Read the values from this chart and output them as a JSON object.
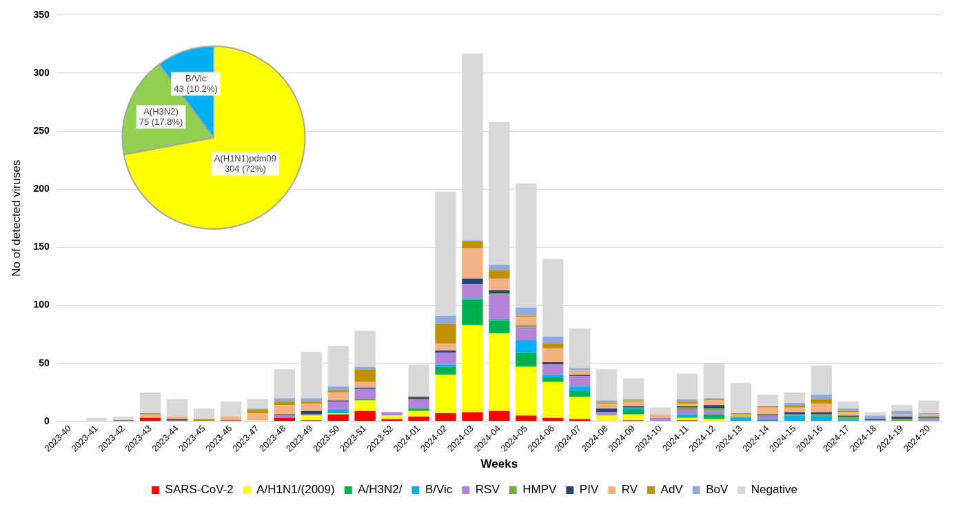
{
  "chart_data": [
    {
      "type": "bar",
      "stacked": true,
      "xlabel": "Weeks",
      "ylabel": "No of detected viruses",
      "categories": [
        "2023-40",
        "2023-41",
        "2023-42",
        "2023-43",
        "2023-44",
        "2023-45",
        "2023-46",
        "2023-47",
        "2023-48",
        "2023-49",
        "2023-50",
        "2023-51",
        "2023-52",
        "2024-01",
        "2024-02",
        "2024-03",
        "2024-04",
        "2024-05",
        "2024-06",
        "2024-07",
        "2024-08",
        "2024-09",
        "2024-10",
        "2024-11",
        "2024-12",
        "2024-13",
        "2024-14",
        "2024-15",
        "2024-16",
        "2024-17",
        "2024-18",
        "2024-19",
        "2024-20"
      ],
      "series": [
        {
          "name": "SARS-CoV-2",
          "color": "#ff0000",
          "values": [
            0,
            0,
            1,
            3,
            1,
            0,
            1,
            0,
            3,
            1,
            6,
            9,
            2,
            4,
            7,
            8,
            9,
            5,
            3,
            2,
            0,
            1,
            0,
            1,
            0,
            0,
            1,
            0,
            0,
            0,
            0,
            0,
            0
          ]
        },
        {
          "name": "A/H1N1/(2009)",
          "color": "#ffff00",
          "values": [
            0,
            0,
            0,
            0,
            0,
            0,
            0,
            1,
            0,
            4,
            1,
            9,
            3,
            5,
            33,
            75,
            67,
            42,
            31,
            19,
            5,
            5,
            0,
            2,
            2,
            0,
            0,
            0,
            0,
            0,
            0,
            0,
            0
          ]
        },
        {
          "name": "A/H3N2/",
          "color": "#00b050",
          "values": [
            0,
            0,
            0,
            0,
            0,
            0,
            0,
            0,
            0,
            0,
            1,
            1,
            0,
            2,
            7,
            22,
            11,
            12,
            4,
            5,
            0,
            4,
            0,
            1,
            4,
            0,
            0,
            0,
            0,
            1,
            0,
            0,
            0
          ]
        },
        {
          "name": "B/Vic",
          "color": "#00b0f0",
          "values": [
            0,
            0,
            0,
            0,
            0,
            0,
            0,
            0,
            0,
            0,
            2,
            0,
            0,
            0,
            2,
            1,
            1,
            11,
            2,
            4,
            0,
            2,
            1,
            2,
            0,
            3,
            1,
            5,
            4,
            1,
            0,
            0,
            1
          ]
        },
        {
          "name": "RSV",
          "color": "#b383d9",
          "values": [
            0,
            0,
            0,
            0,
            0,
            0,
            0,
            0,
            2,
            1,
            7,
            9,
            3,
            8,
            10,
            12,
            21,
            11,
            9,
            9,
            3,
            0,
            2,
            4,
            3,
            0,
            2,
            0,
            0,
            0,
            0,
            0,
            1
          ]
        },
        {
          "name": "HMPV",
          "color": "#70ad47",
          "values": [
            0,
            0,
            0,
            0,
            0,
            0,
            0,
            0,
            0,
            0,
            0,
            0,
            0,
            0,
            0,
            0,
            1,
            2,
            0,
            0,
            0,
            0,
            0,
            2,
            2,
            1,
            1,
            1,
            2,
            2,
            1,
            2,
            1
          ]
        },
        {
          "name": "PIV",
          "color": "#264478",
          "values": [
            0,
            0,
            0,
            0,
            1,
            0,
            0,
            0,
            1,
            3,
            1,
            1,
            0,
            2,
            2,
            5,
            3,
            0,
            2,
            1,
            3,
            1,
            0,
            1,
            3,
            0,
            1,
            2,
            2,
            1,
            1,
            2,
            1
          ]
        },
        {
          "name": "RV",
          "color": "#f4b183",
          "values": [
            0,
            0,
            0,
            3,
            2,
            0,
            3,
            6,
            8,
            6,
            7,
            5,
            0,
            1,
            6,
            26,
            10,
            7,
            12,
            4,
            4,
            4,
            3,
            2,
            4,
            2,
            6,
            4,
            7,
            3,
            0,
            2,
            2
          ]
        },
        {
          "name": "AdV",
          "color": "#bf9000",
          "values": [
            0,
            0,
            0,
            1,
            0,
            2,
            0,
            3,
            3,
            2,
            2,
            11,
            0,
            0,
            17,
            6,
            7,
            1,
            4,
            0,
            1,
            1,
            0,
            2,
            1,
            1,
            1,
            2,
            4,
            1,
            0,
            0,
            0
          ]
        },
        {
          "name": "BoV",
          "color": "#8faadc",
          "values": [
            0,
            0,
            0,
            0,
            0,
            0,
            0,
            1,
            3,
            3,
            3,
            2,
            0,
            0,
            7,
            1,
            5,
            7,
            6,
            2,
            2,
            1,
            0,
            2,
            1,
            0,
            0,
            2,
            4,
            2,
            3,
            3,
            1
          ]
        },
        {
          "name": "Negative",
          "color": "#d9d9d9",
          "values": [
            0,
            3,
            3,
            18,
            15,
            9,
            13,
            8,
            25,
            40,
            35,
            31,
            null,
            27,
            107,
            161,
            123,
            107,
            67,
            34,
            27,
            18,
            6,
            22,
            30,
            26,
            10,
            9,
            25,
            6,
            3,
            5,
            11
          ]
        }
      ],
      "ylim": [
        0,
        350
      ],
      "yticks": [
        0,
        50,
        100,
        150,
        200,
        250,
        300,
        350
      ],
      "grid": "y",
      "legend": "bottom"
    },
    {
      "type": "pie",
      "categories": [
        "A(H1N1)pdm09",
        "A(H3N2)",
        "B/Vic"
      ],
      "values": [
        304,
        75,
        43
      ],
      "colors": [
        "#ffff00",
        "#92d050",
        "#00b0f0"
      ],
      "value_labels": [
        "304 (72%)",
        "75 (17.8%)",
        "43 (10.2%)"
      ]
    }
  ]
}
